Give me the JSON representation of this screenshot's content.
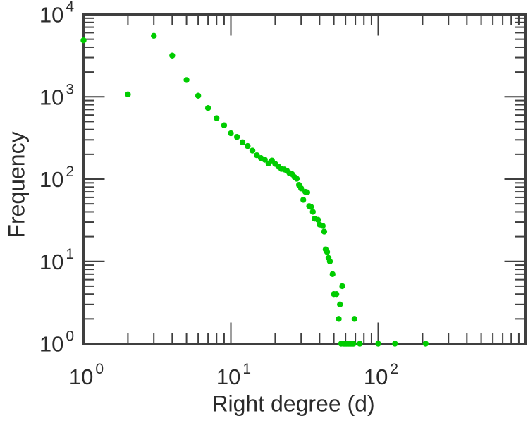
{
  "page": {
    "background": "#ffffff"
  },
  "chart_data": {
    "type": "scatter",
    "title": "",
    "xlabel": "Right degree (d)",
    "ylabel": "Frequency",
    "x_scale": "log",
    "y_scale": "log",
    "xlim": [
      1,
      1000
    ],
    "ylim": [
      1,
      10000
    ],
    "grid": false,
    "legend": null,
    "tick_label_base": "10",
    "x_labeled_exponents": [
      0,
      1,
      2
    ],
    "y_labeled_exponents": [
      0,
      1,
      2,
      3,
      4
    ],
    "marker_color": "#00cc00",
    "axis_color": "#3f3f3f",
    "text_color": "#2b2b2b",
    "marker_shape": "filled-circle",
    "points": [
      [
        1,
        4850
      ],
      [
        2,
        1070
      ],
      [
        3,
        5500
      ],
      [
        4,
        3170
      ],
      [
        5,
        1600
      ],
      [
        6,
        1030
      ],
      [
        7,
        730
      ],
      [
        8,
        550
      ],
      [
        9,
        450
      ],
      [
        10,
        360
      ],
      [
        11,
        325
      ],
      [
        12,
        280
      ],
      [
        13,
        252
      ],
      [
        14,
        222
      ],
      [
        15,
        195
      ],
      [
        16,
        180
      ],
      [
        17,
        172
      ],
      [
        18,
        155
      ],
      [
        19,
        168
      ],
      [
        20,
        153
      ],
      [
        21,
        142
      ],
      [
        22,
        133
      ],
      [
        23,
        131
      ],
      [
        24,
        126
      ],
      [
        25,
        118
      ],
      [
        26,
        115
      ],
      [
        27,
        106
      ],
      [
        28,
        101
      ],
      [
        29,
        85
      ],
      [
        30,
        77
      ],
      [
        31,
        56
      ],
      [
        32,
        70
      ],
      [
        33,
        69
      ],
      [
        34,
        47
      ],
      [
        35,
        46
      ],
      [
        36,
        40
      ],
      [
        37,
        33
      ],
      [
        39,
        32
      ],
      [
        40,
        28
      ],
      [
        42,
        27
      ],
      [
        43,
        23
      ],
      [
        44,
        14
      ],
      [
        45,
        13
      ],
      [
        46,
        11
      ],
      [
        47,
        10
      ],
      [
        49,
        7
      ],
      [
        50,
        4
      ],
      [
        52,
        4
      ],
      [
        54,
        2
      ],
      [
        55,
        3
      ],
      [
        56,
        1
      ],
      [
        57,
        5
      ],
      [
        58,
        1
      ],
      [
        59,
        1
      ],
      [
        60,
        1
      ],
      [
        61,
        1
      ],
      [
        62,
        1
      ],
      [
        63,
        1
      ],
      [
        64,
        1
      ],
      [
        65,
        1
      ],
      [
        66,
        1
      ],
      [
        67,
        1
      ],
      [
        68,
        1
      ],
      [
        69,
        2
      ],
      [
        75,
        1
      ],
      [
        100,
        1
      ],
      [
        130,
        1
      ],
      [
        210,
        1
      ]
    ]
  }
}
